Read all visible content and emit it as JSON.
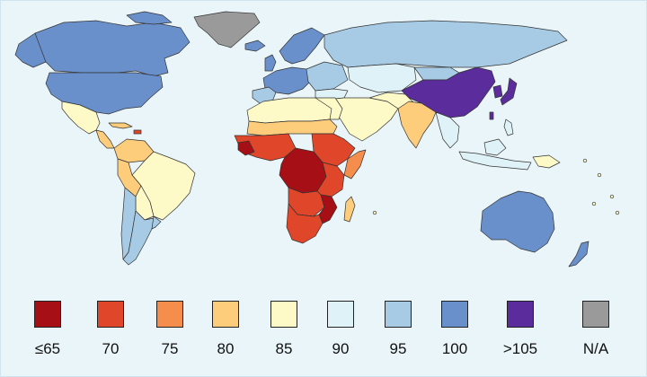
{
  "colors": {
    "background": "#e9f5f9",
    "le65": "#a50f15",
    "c70": "#e0462a",
    "c75": "#f58d4d",
    "c80": "#fdcd7c",
    "c85": "#fefac8",
    "c90": "#def2f7",
    "c95": "#a7cbe5",
    "c100": "#6a90cc",
    "gt105": "#5b2c9b",
    "na": "#9a9a9a"
  },
  "legend": [
    {
      "label": "≤65",
      "color": "#a50f15"
    },
    {
      "label": "70",
      "color": "#e0462a"
    },
    {
      "label": "75",
      "color": "#f58d4d"
    },
    {
      "label": "80",
      "color": "#fdcd7c"
    },
    {
      "label": "85",
      "color": "#fefac8"
    },
    {
      "label": "90",
      "color": "#def2f7"
    },
    {
      "label": "95",
      "color": "#a7cbe5"
    },
    {
      "label": "100",
      "color": "#6a90cc"
    },
    {
      "label": ">105",
      "color": "#5b2c9b"
    },
    {
      "label": "N/A",
      "color": "#9a9a9a"
    }
  ]
}
